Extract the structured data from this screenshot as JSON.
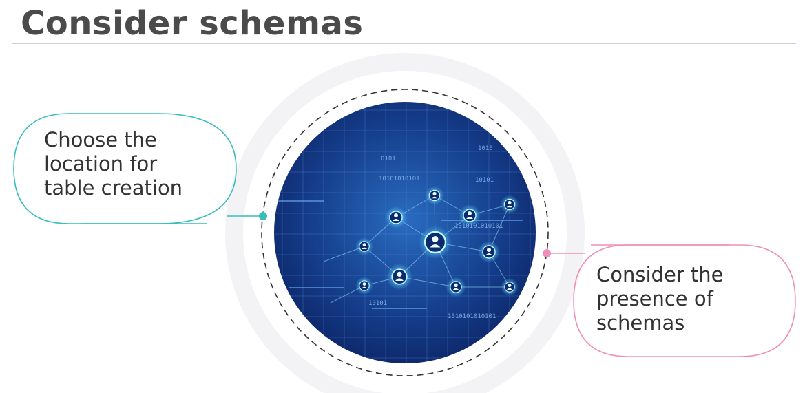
{
  "slide": {
    "title": "Consider schemas"
  },
  "callouts": {
    "left": {
      "lines": [
        "Choose the",
        "location for",
        "table creation"
      ]
    },
    "right": {
      "lines": [
        "Consider the",
        "presence of",
        "schemas"
      ]
    }
  },
  "image": {
    "binary_labels": [
      "1010",
      "0101",
      "10101010101",
      "10101",
      "1010101010101",
      "10101",
      "1010101010101"
    ]
  },
  "colors": {
    "title": "#4b4b4b",
    "teal_accent": "#3bbcbc",
    "pink_accent": "#ef8fb8",
    "image_dark": "#0b2060",
    "image_light": "#2a6cc0",
    "node_glow": "#7fe6ff"
  },
  "icons": {
    "person_nodes": "person-icon"
  }
}
